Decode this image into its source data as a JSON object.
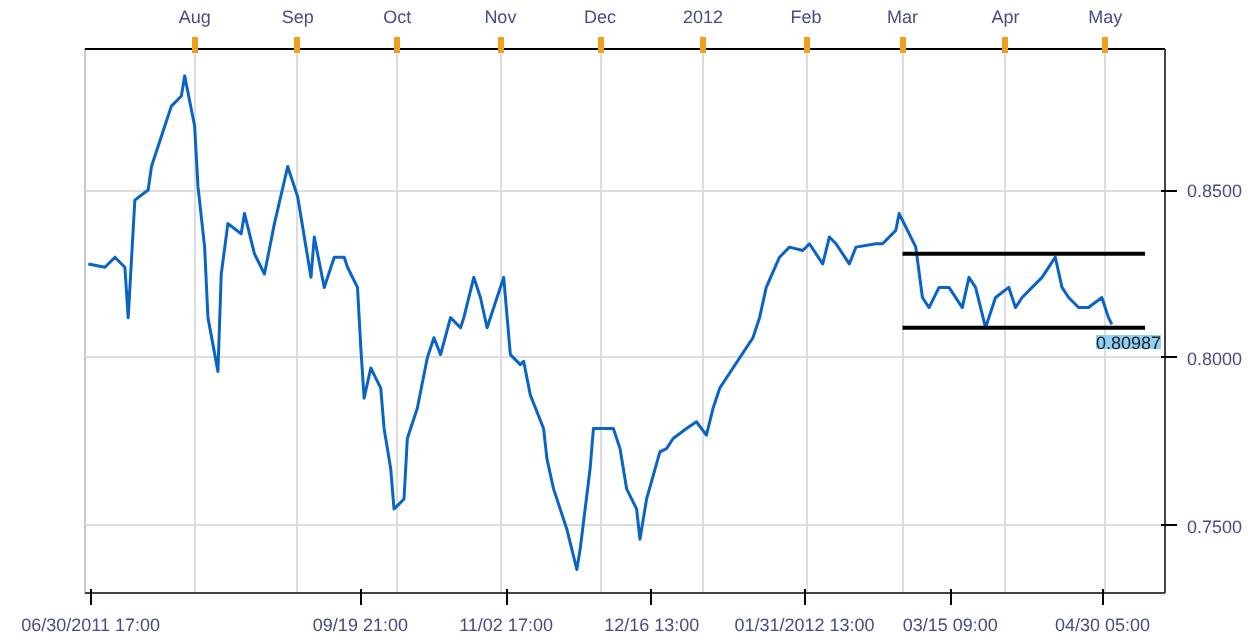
{
  "chart_data": {
    "type": "line",
    "xlim": [
      "2011-06-29",
      "2012-05-19"
    ],
    "ylim": [
      0.73,
      0.892
    ],
    "yticks": [
      {
        "value": 0.75,
        "label": "0.7500"
      },
      {
        "value": 0.8,
        "label": "0.8000"
      },
      {
        "value": 0.85,
        "label": "0.8500"
      }
    ],
    "xticks": [
      {
        "value": "2011-06-30T17:00",
        "label": "06/30/2011 17:00"
      },
      {
        "value": "2011-09-19T21:00",
        "label": "09/19 21:00"
      },
      {
        "value": "2011-11-02T17:00",
        "label": "11/02 17:00"
      },
      {
        "value": "2011-12-16T13:00",
        "label": "12/16 13:00"
      },
      {
        "value": "2012-01-31T13:00",
        "label": "01/31/2012 13:00"
      },
      {
        "value": "2012-03-15T09:00",
        "label": "03/15 09:00"
      },
      {
        "value": "2012-04-30T05:00",
        "label": "04/30 05:00"
      }
    ],
    "x2lim": [
      "2011-06-29",
      "2012-05-19"
    ],
    "x2ticks": [
      {
        "value": "2011-08-01",
        "label": "Aug"
      },
      {
        "value": "2011-09-01",
        "label": "Sep"
      },
      {
        "value": "2011-10-01",
        "label": "Oct"
      },
      {
        "value": "2011-11-01",
        "label": "Nov"
      },
      {
        "value": "2011-12-01",
        "label": "Dec"
      },
      {
        "value": "2012-01-01",
        "label": "2012"
      },
      {
        "value": "2012-02-01",
        "label": "Feb"
      },
      {
        "value": "2012-03-01",
        "label": "Mar"
      },
      {
        "value": "2012-04-01",
        "label": "Apr"
      },
      {
        "value": "2012-05-01",
        "label": "May"
      }
    ],
    "grid": true,
    "annotations": [
      "0.80987"
    ],
    "series": [
      {
        "color": "#0a64c8",
        "x": [
          "2011-06-30",
          "2011-07-05",
          "2011-07-08",
          "2011-07-11",
          "2011-07-12",
          "2011-07-14",
          "2011-07-18",
          "2011-07-19",
          "2011-07-22",
          "2011-07-25",
          "2011-07-28",
          "2011-07-29",
          "2011-08-01",
          "2011-08-02",
          "2011-08-04",
          "2011-08-05",
          "2011-08-08",
          "2011-08-09",
          "2011-08-11",
          "2011-08-15",
          "2011-08-16",
          "2011-08-19",
          "2011-08-22",
          "2011-08-25",
          "2011-08-29",
          "2011-08-30",
          "2011-09-01",
          "2011-09-05",
          "2011-09-06",
          "2011-09-09",
          "2011-09-12",
          "2011-09-15",
          "2011-09-16",
          "2011-09-19",
          "2011-09-20",
          "2011-09-21",
          "2011-09-23",
          "2011-09-26",
          "2011-09-27",
          "2011-09-29",
          "2011-09-30",
          "2011-10-03",
          "2011-10-04",
          "2011-10-07",
          "2011-10-10",
          "2011-10-12",
          "2011-10-14",
          "2011-10-17",
          "2011-10-20",
          "2011-10-21",
          "2011-10-24",
          "2011-10-26",
          "2011-10-28",
          "2011-10-31",
          "2011-11-02",
          "2011-11-04",
          "2011-11-07",
          "2011-11-08",
          "2011-11-10",
          "2011-11-14",
          "2011-11-15",
          "2011-11-17",
          "2011-11-21",
          "2011-11-24",
          "2011-11-25",
          "2011-11-28",
          "2011-11-29",
          "2011-12-01",
          "2011-12-05",
          "2011-12-07",
          "2011-12-09",
          "2011-12-12",
          "2011-12-13",
          "2011-12-15",
          "2011-12-19",
          "2011-12-21",
          "2011-12-23",
          "2011-12-27",
          "2011-12-30",
          "2012-01-02",
          "2012-01-04",
          "2012-01-06",
          "2012-01-10",
          "2012-01-12",
          "2012-01-16",
          "2012-01-18",
          "2012-01-20",
          "2012-01-24",
          "2012-01-27",
          "2012-01-31",
          "2012-02-02",
          "2012-02-06",
          "2012-02-08",
          "2012-02-10",
          "2012-02-14",
          "2012-02-16",
          "2012-02-22",
          "2012-02-24",
          "2012-02-28",
          "2012-02-29",
          "2012-03-02",
          "2012-03-05",
          "2012-03-07",
          "2012-03-09",
          "2012-03-12",
          "2012-03-15",
          "2012-03-19",
          "2012-03-21",
          "2012-03-23",
          "2012-03-26",
          "2012-03-29",
          "2012-04-02",
          "2012-04-04",
          "2012-04-06",
          "2012-04-09",
          "2012-04-12",
          "2012-04-16",
          "2012-04-18",
          "2012-04-20",
          "2012-04-23",
          "2012-04-26",
          "2012-04-30",
          "2012-05-02",
          "2012-05-03"
        ],
        "values": [
          0.828,
          0.827,
          0.83,
          0.827,
          0.812,
          0.847,
          0.85,
          0.857,
          0.866,
          0.875,
          0.878,
          0.884,
          0.869,
          0.851,
          0.833,
          0.812,
          0.796,
          0.825,
          0.84,
          0.837,
          0.843,
          0.831,
          0.825,
          0.84,
          0.857,
          0.854,
          0.848,
          0.824,
          0.836,
          0.821,
          0.83,
          0.83,
          0.827,
          0.821,
          0.803,
          0.788,
          0.797,
          0.791,
          0.779,
          0.767,
          0.755,
          0.758,
          0.776,
          0.785,
          0.8,
          0.806,
          0.801,
          0.812,
          0.809,
          0.812,
          0.824,
          0.818,
          0.809,
          0.818,
          0.824,
          0.801,
          0.798,
          0.799,
          0.789,
          0.779,
          0.77,
          0.761,
          0.749,
          0.737,
          0.743,
          0.767,
          0.779,
          0.779,
          0.779,
          0.773,
          0.761,
          0.755,
          0.746,
          0.758,
          0.772,
          0.773,
          0.776,
          0.779,
          0.781,
          0.777,
          0.785,
          0.791,
          0.797,
          0.8,
          0.806,
          0.812,
          0.821,
          0.83,
          0.833,
          0.832,
          0.834,
          0.828,
          0.836,
          0.834,
          0.828,
          0.833,
          0.834,
          0.834,
          0.838,
          0.843,
          0.839,
          0.833,
          0.818,
          0.815,
          0.821,
          0.821,
          0.815,
          0.824,
          0.821,
          0.809,
          0.818,
          0.821,
          0.815,
          0.818,
          0.821,
          0.824,
          0.83,
          0.821,
          0.818,
          0.815,
          0.815,
          0.818,
          0.812,
          0.81
        ]
      },
      {
        "color": "#000000",
        "x": [
          "2012-03-01",
          "2012-05-13"
        ],
        "values": [
          0.831,
          0.831
        ]
      },
      {
        "color": "#000000",
        "x": [
          "2012-03-01",
          "2012-05-13"
        ],
        "values": [
          0.809,
          0.809
        ]
      }
    ]
  }
}
